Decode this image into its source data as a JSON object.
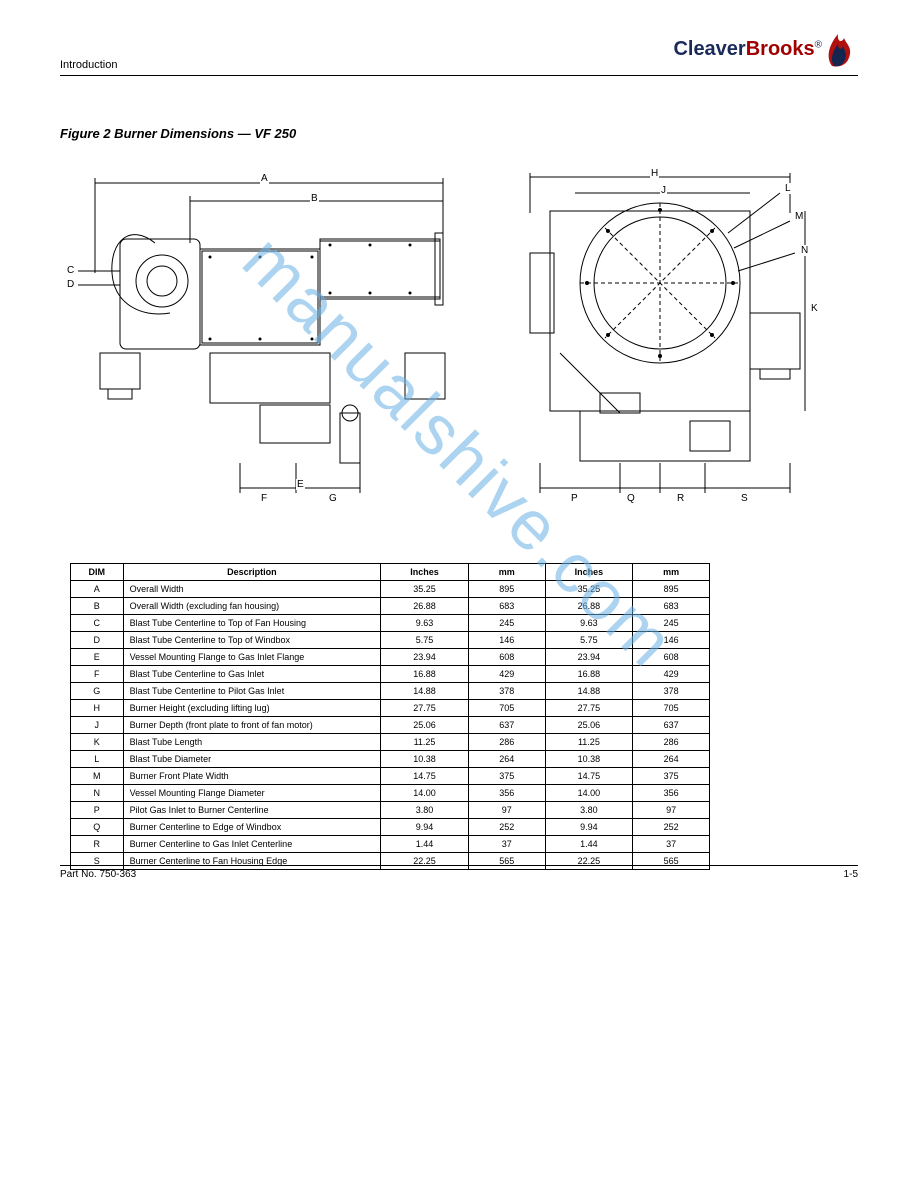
{
  "header": {
    "section_title": "Introduction",
    "logo": {
      "part1": "Cleaver",
      "part2": "Brooks",
      "reg": "®"
    }
  },
  "figure": {
    "title": "Figure 2  Burner Dimensions — VF 250",
    "left_view_labels": {
      "C": "C",
      "D": "D",
      "A": "A",
      "B": "B",
      "E": "E",
      "F": "F",
      "G": "G"
    },
    "right_view_labels": {
      "H": "H",
      "J": "J",
      "K": "K",
      "L": "L",
      "M": "M",
      "N": "N",
      "P": "P",
      "Q": "Q",
      "R": "R",
      "S": "S"
    }
  },
  "table": {
    "columns": [
      "DIM",
      "Description",
      "Inches",
      "mm",
      "Inches",
      "mm"
    ],
    "rows": [
      [
        "A",
        "Overall Width",
        "35.25",
        "895",
        "35.25",
        "895"
      ],
      [
        "B",
        "Overall Width (excluding fan housing)",
        "26.88",
        "683",
        "26.88",
        "683"
      ],
      [
        "C",
        "Blast Tube Centerline to Top of Fan Housing",
        "9.63",
        "245",
        "9.63",
        "245"
      ],
      [
        "D",
        "Blast Tube Centerline to Top of Windbox",
        "5.75",
        "146",
        "5.75",
        "146"
      ],
      [
        "E",
        "Vessel Mounting Flange to Gas Inlet Flange",
        "23.94",
        "608",
        "23.94",
        "608"
      ],
      [
        "F",
        "Blast Tube Centerline to Gas Inlet",
        "16.88",
        "429",
        "16.88",
        "429"
      ],
      [
        "G",
        "Blast Tube Centerline to Pilot Gas Inlet",
        "14.88",
        "378",
        "14.88",
        "378"
      ],
      [
        "H",
        "Burner Height (excluding lifting lug)",
        "27.75",
        "705",
        "27.75",
        "705"
      ],
      [
        "J",
        "Burner Depth (front plate to front of fan motor)",
        "25.06",
        "637",
        "25.06",
        "637"
      ],
      [
        "K",
        "Blast Tube Length",
        "11.25",
        "286",
        "11.25",
        "286"
      ],
      [
        "L",
        "Blast Tube Diameter",
        "10.38",
        "264",
        "10.38",
        "264"
      ],
      [
        "M",
        "Burner Front Plate Width",
        "14.75",
        "375",
        "14.75",
        "375"
      ],
      [
        "N",
        "Vessel Mounting Flange Diameter",
        "14.00",
        "356",
        "14.00",
        "356"
      ],
      [
        "P",
        "Pilot Gas Inlet to Burner Centerline",
        "3.80",
        "97",
        "3.80",
        "97"
      ],
      [
        "Q",
        "Burner Centerline to Edge of Windbox",
        "9.94",
        "252",
        "9.94",
        "252"
      ],
      [
        "R",
        "Burner Centerline to Gas Inlet Centerline",
        "1.44",
        "37",
        "1.44",
        "37"
      ],
      [
        "S",
        "Burner Centerline to Fan Housing Edge",
        "22.25",
        "565",
        "22.25",
        "565"
      ]
    ],
    "col_widths": [
      "48px",
      "235px",
      "80px",
      "70px",
      "80px",
      "70px"
    ]
  },
  "footer": {
    "left": "Part No. 750-363",
    "right": "1-5"
  },
  "watermark": "manualshive.com",
  "colors": {
    "ink": "#000000",
    "logo_navy": "#1a2a5a",
    "logo_red": "#a10000",
    "flame_red": "#b01010",
    "flame_navy": "#14254f",
    "watermark": "#6ab2e7"
  }
}
